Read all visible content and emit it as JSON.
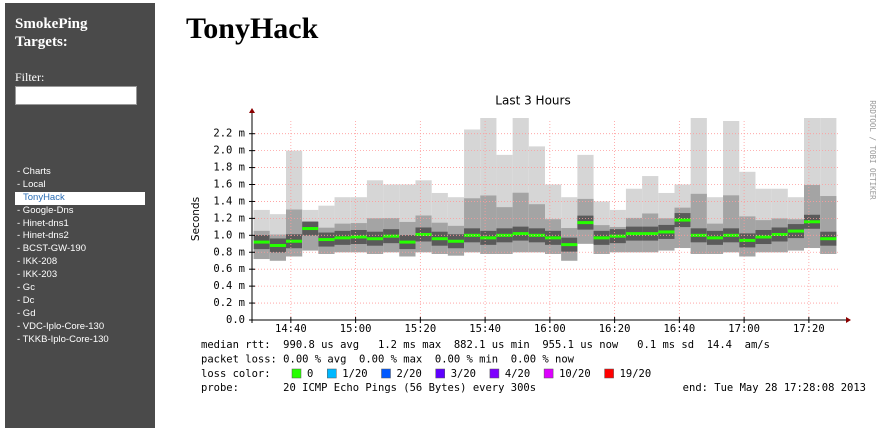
{
  "sidebar": {
    "title": "SmokePing Targets:",
    "filter_label": "Filter:",
    "items": [
      "- Charts",
      "- Local",
      "TonyHack",
      "- Google-Dns",
      "- Hinet-dns1",
      "- Hinet-dns2",
      "- BCST-GW-190",
      "- IKK-208",
      "- IKK-203",
      "- Gc",
      "- Dc",
      "- Gd",
      "- VDC-Iplo-Core-130",
      "- TKKB-Iplo-Core-130"
    ]
  },
  "header": {
    "title": "TonyHack"
  },
  "chart_data": {
    "type": "line",
    "title": "Last 3 Hours",
    "y_label": "Seconds",
    "watermark": "RRDTOOL / TOBI OETIKER",
    "x": [
      "14:31",
      "14:36",
      "14:41",
      "14:46",
      "14:51",
      "14:56",
      "15:01",
      "15:06",
      "15:11",
      "15:16",
      "15:21",
      "15:26",
      "15:31",
      "15:36",
      "15:41",
      "15:46",
      "15:51",
      "15:56",
      "16:01",
      "16:06",
      "16:11",
      "16:16",
      "16:21",
      "16:26",
      "16:31",
      "16:36",
      "16:41",
      "16:46",
      "16:51",
      "16:56",
      "17:01",
      "17:06",
      "17:11",
      "17:16",
      "17:21",
      "17:26"
    ],
    "median_color": "#26ff00",
    "values": [
      0.92,
      0.88,
      0.93,
      1.08,
      0.95,
      0.97,
      0.98,
      0.96,
      0.99,
      0.92,
      1.01,
      0.96,
      0.93,
      1.0,
      0.97,
      1.0,
      1.02,
      1.0,
      0.97,
      0.89,
      1.15,
      0.97,
      0.99,
      1.02,
      1.02,
      1.04,
      1.18,
      1.0,
      0.97,
      1.0,
      0.94,
      0.98,
      1.01,
      1.05,
      1.16,
      0.96
    ],
    "smoke_low": [
      0.72,
      0.7,
      0.75,
      0.82,
      0.78,
      0.8,
      0.8,
      0.78,
      0.8,
      0.75,
      0.8,
      0.78,
      0.76,
      0.8,
      0.78,
      0.78,
      0.8,
      0.8,
      0.78,
      0.7,
      0.9,
      0.78,
      0.8,
      0.8,
      0.8,
      0.82,
      0.85,
      0.78,
      0.78,
      0.8,
      0.75,
      0.8,
      0.8,
      0.82,
      0.85,
      0.78
    ],
    "smoke_high": [
      1.3,
      1.25,
      2.0,
      1.3,
      1.35,
      1.45,
      1.45,
      1.65,
      1.6,
      1.6,
      1.65,
      1.5,
      1.45,
      2.25,
      2.4,
      1.95,
      2.4,
      2.05,
      1.6,
      1.45,
      1.95,
      1.4,
      1.3,
      1.55,
      1.7,
      1.5,
      1.6,
      2.4,
      1.45,
      2.35,
      1.75,
      1.55,
      1.55,
      1.45,
      2.4,
      2.4
    ],
    "xlim": [
      "14:28",
      "17:29"
    ],
    "xticks": [
      "14:40",
      "15:00",
      "15:20",
      "15:40",
      "16:00",
      "16:20",
      "16:40",
      "17:00",
      "17:20"
    ],
    "ylim": [
      0,
      2.35
    ],
    "yticks": [
      {
        "value": 0,
        "label": "0.0"
      },
      {
        "value": 0.2,
        "label": "0.2 m"
      },
      {
        "value": 0.4,
        "label": "0.4 m"
      },
      {
        "value": 0.6,
        "label": "0.6 m"
      },
      {
        "value": 0.8,
        "label": "0.8 m"
      },
      {
        "value": 1.0,
        "label": "1.0 m"
      },
      {
        "value": 1.2,
        "label": "1.2 m"
      },
      {
        "value": 1.4,
        "label": "1.4 m"
      },
      {
        "value": 1.6,
        "label": "1.6 m"
      },
      {
        "value": 1.8,
        "label": "1.8 m"
      },
      {
        "value": 2.0,
        "label": "2.0 m"
      },
      {
        "value": 2.2,
        "label": "2.2 m"
      }
    ],
    "grid": true,
    "legend": [
      "median rtt:  990.8 us avg   1.2 ms max  882.1 us min  955.1 us now   0.1 ms sd  14.4  am/s",
      "packet loss: 0.00 % avg  0.00 % max  0.00 % min  0.00 % now"
    ],
    "loss_color_label": "loss color:",
    "loss_colors": [
      {
        "label": "0",
        "color": "#26ff00"
      },
      {
        "label": "1/20",
        "color": "#00b8ff"
      },
      {
        "label": "2/20",
        "color": "#0059ff"
      },
      {
        "label": "3/20",
        "color": "#5e00ff"
      },
      {
        "label": "4/20",
        "color": "#7e00ff"
      },
      {
        "label": "10/20",
        "color": "#dd00ff"
      },
      {
        "label": "19/20",
        "color": "#ff0000"
      }
    ],
    "probe": "probe:       20 ICMP Echo Pings (56 Bytes) every 300s",
    "end": "end: Tue May 28 17:28:08 2013"
  }
}
